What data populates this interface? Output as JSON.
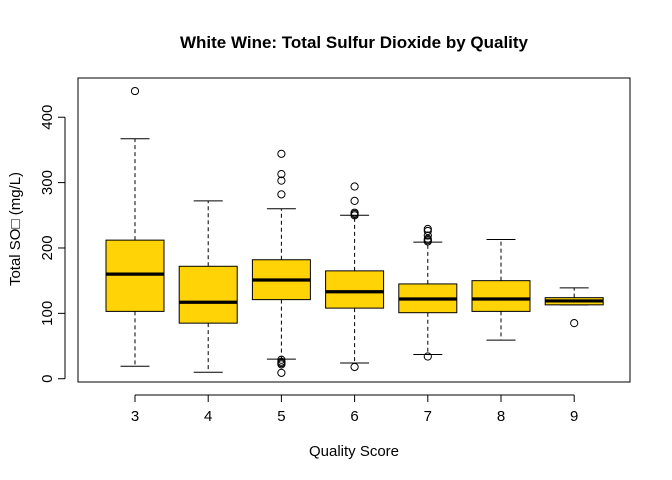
{
  "chart_data": {
    "type": "boxplot",
    "title": "White Wine: Total Sulfur Dioxide by Quality",
    "xlabel": "Quality Score",
    "ylabel": "Total SO□ (mg/L)",
    "categories": [
      "3",
      "4",
      "5",
      "6",
      "7",
      "8",
      "9"
    ],
    "ylim": [
      -5,
      460
    ],
    "yticks": [
      0,
      100,
      200,
      300,
      400
    ],
    "grid": false,
    "legend": "none",
    "box_color": "#FFD306",
    "boxes": [
      {
        "category": "3",
        "whisker_low": 19,
        "q1": 103,
        "median": 160,
        "q3": 212,
        "whisker_high": 367,
        "outliers": [
          440
        ]
      },
      {
        "category": "4",
        "whisker_low": 10,
        "q1": 85,
        "median": 117,
        "q3": 172,
        "whisker_high": 272,
        "outliers": []
      },
      {
        "category": "5",
        "whisker_low": 30,
        "q1": 121,
        "median": 151,
        "q3": 182,
        "whisker_high": 260,
        "outliers": [
          344,
          313,
          303,
          282,
          29,
          26,
          24,
          22,
          9
        ]
      },
      {
        "category": "6",
        "whisker_low": 24,
        "q1": 108,
        "median": 133,
        "q3": 165,
        "whisker_high": 250,
        "outliers": [
          294,
          272,
          254,
          252,
          250,
          18
        ]
      },
      {
        "category": "7",
        "whisker_low": 37,
        "q1": 101,
        "median": 122,
        "q3": 145,
        "whisker_high": 209,
        "outliers": [
          229,
          226,
          219,
          214,
          212,
          210,
          34
        ]
      },
      {
        "category": "8",
        "whisker_low": 59,
        "q1": 103,
        "median": 122,
        "q3": 150,
        "whisker_high": 213,
        "outliers": []
      },
      {
        "category": "9",
        "whisker_low": 113,
        "q1": 113,
        "median": 119,
        "q3": 124,
        "whisker_high": 139,
        "outliers": [
          85
        ]
      }
    ]
  }
}
